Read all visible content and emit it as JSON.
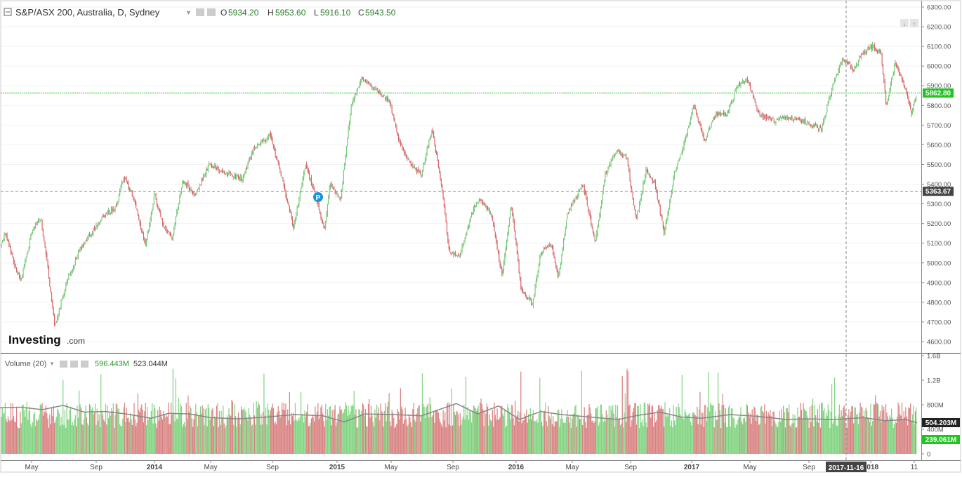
{
  "legend": {
    "title": "S&P/ASX 200, Australia, D, Sydney",
    "open_label": "O",
    "open": "5934.20",
    "high_label": "H",
    "high": "5953.60",
    "low_label": "L",
    "low": "5916.10",
    "close_label": "C",
    "close": "5943.50"
  },
  "volume_legend": {
    "title": "Volume (20)",
    "value1": "596.443M",
    "value2": "523.044M"
  },
  "watermark": {
    "main": "Investing",
    "suffix": ".com"
  },
  "event_marker": "P",
  "colors": {
    "up": "#6fcf6f",
    "down": "#e06060",
    "up_vol": "#7fd37f",
    "down_vol": "#d98080",
    "ma": "#888888",
    "current_line": "#22c322"
  },
  "chart_data": [
    {
      "type": "candlestick",
      "title": "S&P/ASX 200, Australia, D, Sydney",
      "y_ticks": [
        4600,
        4700,
        4800,
        4900,
        5000,
        5100,
        5200,
        5300,
        5400,
        5500,
        5600,
        5700,
        5800,
        5900,
        6000,
        6100,
        6200,
        6300
      ],
      "y_tick_labels": [
        "4600.00",
        "4700.00",
        "4800.00",
        "4900.00",
        "5000.00",
        "5100.00",
        "5200.00",
        "5300.00",
        "5400.00",
        "5500.00",
        "5600.00",
        "5700.00",
        "5800.00",
        "5900.00",
        "6000.00",
        "6100.00",
        "6200.00",
        "6300.00"
      ],
      "ylim": [
        4550,
        6310
      ],
      "x_labels": [
        "May",
        "Sep",
        "2014",
        "May",
        "Sep",
        "2015",
        "May",
        "Sep",
        "2016",
        "May",
        "Sep",
        "2017",
        "May",
        "Sep",
        "2018",
        "11"
      ],
      "current_price": 5862.8,
      "current_price_label": "5862.80",
      "crosshair_price": 5363.67,
      "crosshair_price_label": "5363.67",
      "crosshair_date": "2017-11-16",
      "close_path": [
        {
          "x": 0,
          "y": 5080
        },
        {
          "x": 8,
          "y": 5150
        },
        {
          "x": 20,
          "y": 5000
        },
        {
          "x": 30,
          "y": 4910
        },
        {
          "x": 45,
          "y": 5150
        },
        {
          "x": 58,
          "y": 5230
        },
        {
          "x": 68,
          "y": 4980
        },
        {
          "x": 78,
          "y": 4680
        },
        {
          "x": 95,
          "y": 4900
        },
        {
          "x": 115,
          "y": 5080
        },
        {
          "x": 130,
          "y": 5150
        },
        {
          "x": 150,
          "y": 5250
        },
        {
          "x": 165,
          "y": 5280
        },
        {
          "x": 176,
          "y": 5440
        },
        {
          "x": 190,
          "y": 5330
        },
        {
          "x": 207,
          "y": 5090
        },
        {
          "x": 220,
          "y": 5350
        },
        {
          "x": 232,
          "y": 5200
        },
        {
          "x": 245,
          "y": 5120
        },
        {
          "x": 260,
          "y": 5420
        },
        {
          "x": 278,
          "y": 5350
        },
        {
          "x": 298,
          "y": 5500
        },
        {
          "x": 322,
          "y": 5460
        },
        {
          "x": 345,
          "y": 5430
        },
        {
          "x": 362,
          "y": 5580
        },
        {
          "x": 385,
          "y": 5650
        },
        {
          "x": 405,
          "y": 5380
        },
        {
          "x": 418,
          "y": 5180
        },
        {
          "x": 435,
          "y": 5500
        },
        {
          "x": 450,
          "y": 5330
        },
        {
          "x": 462,
          "y": 5170
        },
        {
          "x": 470,
          "y": 5400
        },
        {
          "x": 485,
          "y": 5320
        },
        {
          "x": 500,
          "y": 5800
        },
        {
          "x": 515,
          "y": 5940
        },
        {
          "x": 535,
          "y": 5880
        },
        {
          "x": 555,
          "y": 5820
        },
        {
          "x": 568,
          "y": 5620
        },
        {
          "x": 585,
          "y": 5500
        },
        {
          "x": 600,
          "y": 5450
        },
        {
          "x": 615,
          "y": 5680
        },
        {
          "x": 630,
          "y": 5370
        },
        {
          "x": 640,
          "y": 5050
        },
        {
          "x": 655,
          "y": 5040
        },
        {
          "x": 672,
          "y": 5250
        },
        {
          "x": 682,
          "y": 5330
        },
        {
          "x": 700,
          "y": 5250
        },
        {
          "x": 715,
          "y": 4930
        },
        {
          "x": 728,
          "y": 5300
        },
        {
          "x": 742,
          "y": 4870
        },
        {
          "x": 758,
          "y": 4790
        },
        {
          "x": 770,
          "y": 5050
        },
        {
          "x": 785,
          "y": 5100
        },
        {
          "x": 795,
          "y": 4920
        },
        {
          "x": 808,
          "y": 5250
        },
        {
          "x": 830,
          "y": 5400
        },
        {
          "x": 848,
          "y": 5100
        },
        {
          "x": 862,
          "y": 5450
        },
        {
          "x": 878,
          "y": 5570
        },
        {
          "x": 892,
          "y": 5540
        },
        {
          "x": 906,
          "y": 5220
        },
        {
          "x": 920,
          "y": 5470
        },
        {
          "x": 932,
          "y": 5410
        },
        {
          "x": 946,
          "y": 5150
        },
        {
          "x": 960,
          "y": 5450
        },
        {
          "x": 975,
          "y": 5620
        },
        {
          "x": 988,
          "y": 5800
        },
        {
          "x": 1003,
          "y": 5620
        },
        {
          "x": 1020,
          "y": 5760
        },
        {
          "x": 1035,
          "y": 5750
        },
        {
          "x": 1050,
          "y": 5900
        },
        {
          "x": 1065,
          "y": 5930
        },
        {
          "x": 1080,
          "y": 5760
        },
        {
          "x": 1100,
          "y": 5720
        },
        {
          "x": 1120,
          "y": 5740
        },
        {
          "x": 1145,
          "y": 5720
        },
        {
          "x": 1170,
          "y": 5680
        },
        {
          "x": 1185,
          "y": 5890
        },
        {
          "x": 1200,
          "y": 6040
        },
        {
          "x": 1215,
          "y": 5980
        },
        {
          "x": 1230,
          "y": 6070
        },
        {
          "x": 1243,
          "y": 6100
        },
        {
          "x": 1255,
          "y": 6060
        },
        {
          "x": 1262,
          "y": 5800
        },
        {
          "x": 1275,
          "y": 6020
        },
        {
          "x": 1288,
          "y": 5900
        },
        {
          "x": 1298,
          "y": 5760
        },
        {
          "x": 1306,
          "y": 5860
        }
      ]
    },
    {
      "type": "bar",
      "title": "Volume (20)",
      "y_ticks": [
        0,
        400000000,
        800000000,
        1200000000,
        1600000000
      ],
      "y_tick_labels": [
        "0",
        "400M",
        "800M",
        "1.2B",
        "1.6B"
      ],
      "ylim": [
        0,
        1620000000
      ],
      "last_volume_label": "239.061M",
      "last_ma_label": "504.203M",
      "ma_path": [
        {
          "x": 0,
          "y": 750
        },
        {
          "x": 30,
          "y": 760
        },
        {
          "x": 60,
          "y": 720
        },
        {
          "x": 90,
          "y": 790
        },
        {
          "x": 120,
          "y": 680
        },
        {
          "x": 150,
          "y": 690
        },
        {
          "x": 180,
          "y": 650
        },
        {
          "x": 215,
          "y": 580
        },
        {
          "x": 240,
          "y": 660
        },
        {
          "x": 270,
          "y": 650
        },
        {
          "x": 300,
          "y": 590
        },
        {
          "x": 340,
          "y": 570
        },
        {
          "x": 380,
          "y": 600
        },
        {
          "x": 420,
          "y": 640
        },
        {
          "x": 460,
          "y": 620
        },
        {
          "x": 490,
          "y": 520
        },
        {
          "x": 520,
          "y": 650
        },
        {
          "x": 560,
          "y": 640
        },
        {
          "x": 600,
          "y": 620
        },
        {
          "x": 650,
          "y": 820
        },
        {
          "x": 680,
          "y": 650
        },
        {
          "x": 710,
          "y": 780
        },
        {
          "x": 740,
          "y": 560
        },
        {
          "x": 770,
          "y": 690
        },
        {
          "x": 800,
          "y": 640
        },
        {
          "x": 840,
          "y": 600
        },
        {
          "x": 880,
          "y": 560
        },
        {
          "x": 910,
          "y": 630
        },
        {
          "x": 940,
          "y": 680
        },
        {
          "x": 970,
          "y": 600
        },
        {
          "x": 1000,
          "y": 580
        },
        {
          "x": 1040,
          "y": 640
        },
        {
          "x": 1080,
          "y": 610
        },
        {
          "x": 1120,
          "y": 560
        },
        {
          "x": 1150,
          "y": 570
        },
        {
          "x": 1190,
          "y": 560
        },
        {
          "x": 1230,
          "y": 590
        },
        {
          "x": 1260,
          "y": 540
        },
        {
          "x": 1290,
          "y": 560
        },
        {
          "x": 1306,
          "y": 504
        }
      ],
      "ma_unit": "M"
    }
  ]
}
